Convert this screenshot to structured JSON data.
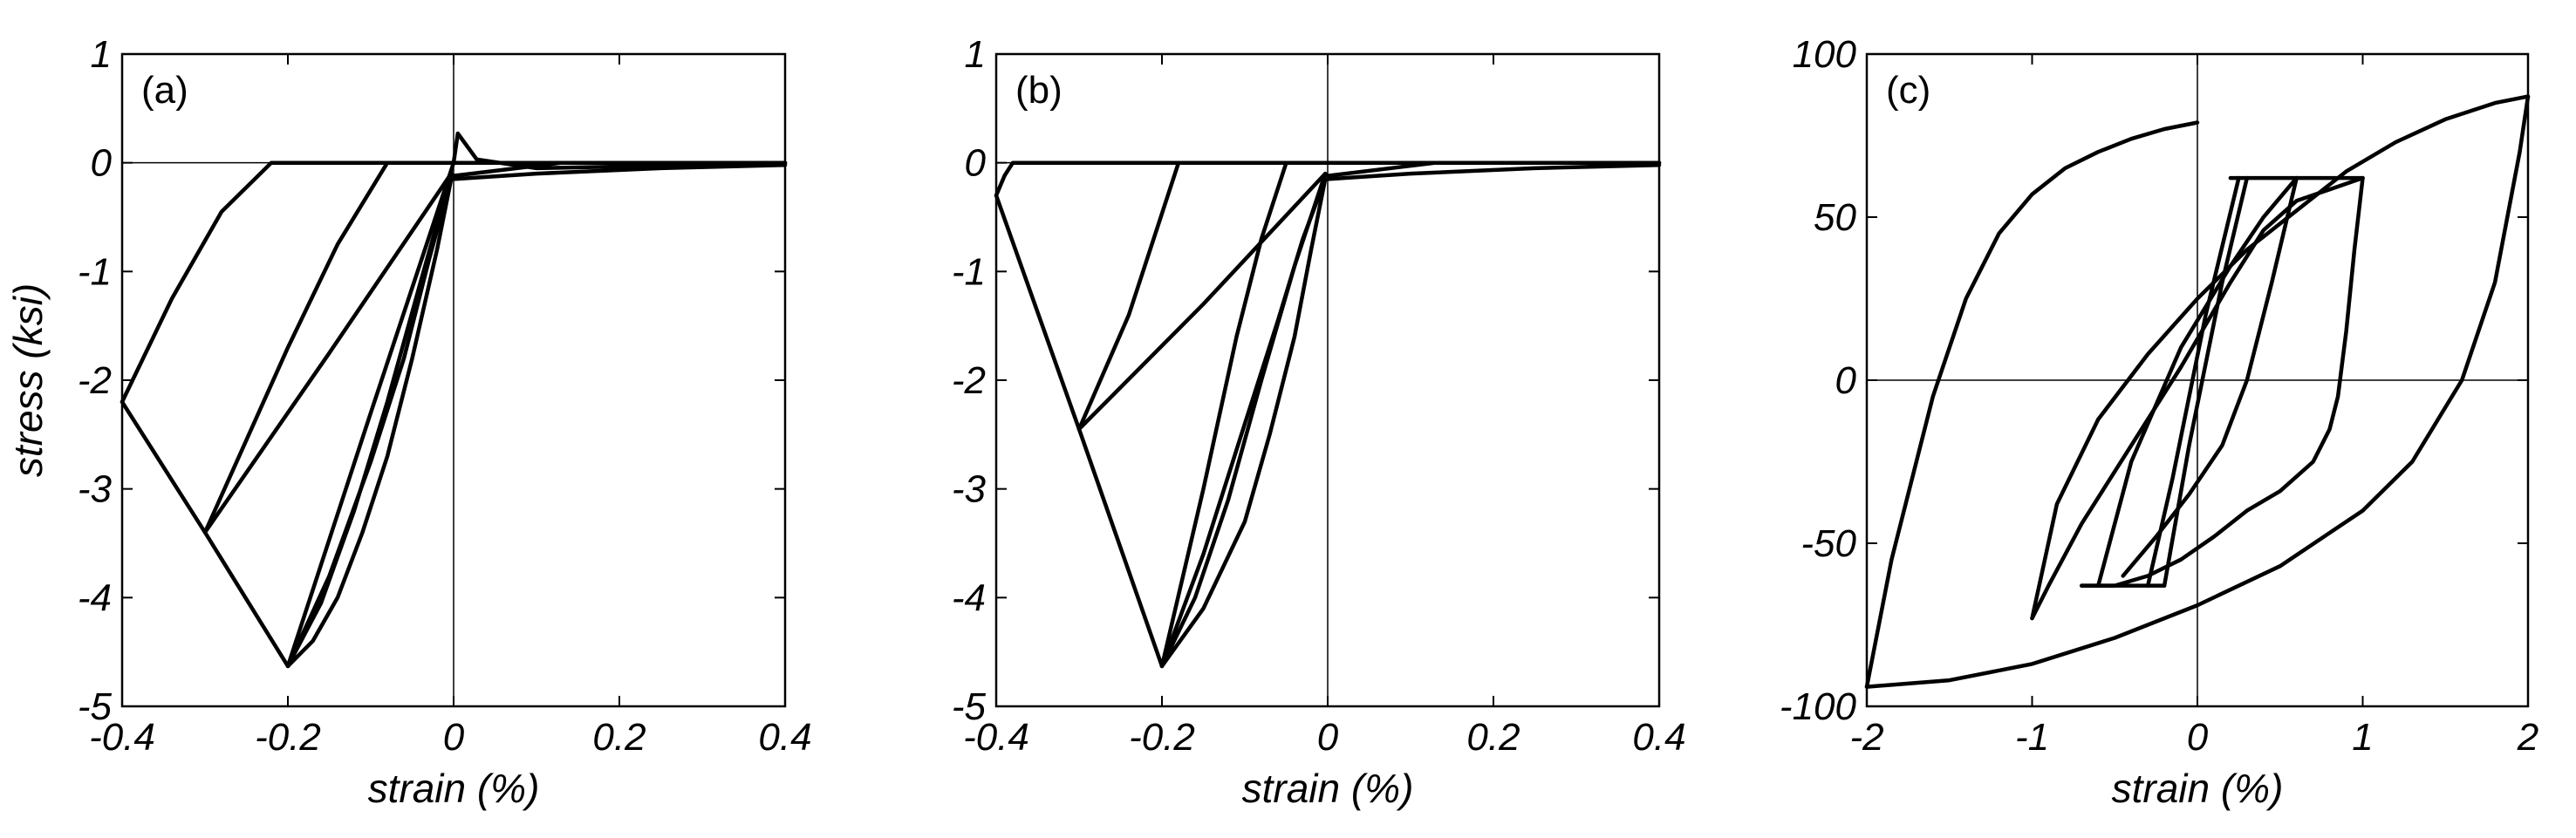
{
  "chart_data": [
    {
      "type": "line",
      "panel_label": "(a)",
      "xlabel": "strain (%)",
      "ylabel": "stress (ksi)",
      "xlim": [
        -0.4,
        0.4
      ],
      "ylim": [
        -5,
        1
      ],
      "xticks": [
        -0.4,
        -0.2,
        0,
        0.2,
        0.4
      ],
      "xtick_labels": [
        "-0.4",
        "-0.2",
        "0",
        "0.2",
        "0.4"
      ],
      "yticks": [
        -5,
        -4,
        -3,
        -2,
        -1,
        0,
        1
      ],
      "ytick_labels": [
        "-5",
        "-4",
        "-3",
        "-2",
        "-1",
        "0",
        "1"
      ],
      "zero_lines": true,
      "grid": false,
      "series": [
        {
          "x": [
            0,
            -0.1,
            -0.2,
            -0.3,
            -0.4
          ],
          "y": [
            0,
            -2.3,
            -4.63,
            -3.4,
            -2.2
          ]
        },
        {
          "x": [
            -0.4,
            -0.34,
            -0.28,
            -0.22,
            0.4
          ],
          "y": [
            -2.2,
            -1.25,
            -0.45,
            0,
            0
          ]
        },
        {
          "x": [
            -0.3,
            -0.15,
            -0.003
          ],
          "y": [
            -3.4,
            -1.75,
            -0.1
          ]
        },
        {
          "x": [
            -0.3,
            -0.2,
            -0.14,
            -0.08,
            0.4
          ],
          "y": [
            -3.4,
            -1.7,
            -0.75,
            0,
            0
          ]
        },
        {
          "x": [
            -0.2,
            -0.16,
            -0.12,
            -0.08,
            -0.04,
            -0.003
          ],
          "y": [
            -4.63,
            -4.05,
            -3.2,
            -2.2,
            -1.1,
            -0.1
          ]
        },
        {
          "x": [
            -0.2,
            -0.17,
            -0.14,
            -0.11,
            -0.08,
            -0.05,
            -0.02,
            -0.003
          ],
          "y": [
            -4.63,
            -4.4,
            -4.0,
            -3.4,
            -2.7,
            -1.8,
            -0.8,
            -0.15
          ]
        },
        {
          "x": [
            -0.2,
            -0.15,
            -0.1,
            -0.06,
            -0.03,
            -0.003
          ],
          "y": [
            -4.63,
            -3.8,
            -2.75,
            -1.8,
            -0.9,
            -0.15
          ]
        },
        {
          "x": [
            0,
            0.005,
            0.028,
            0.1,
            0.3,
            0.4
          ],
          "y": [
            0,
            0.27,
            0.03,
            -0.05,
            -0.02,
            0
          ]
        },
        {
          "x": [
            0,
            0.1,
            0.25,
            0.4
          ],
          "y": [
            -0.15,
            -0.1,
            -0.05,
            -0.02
          ]
        },
        {
          "x": [
            0,
            0.13
          ],
          "y": [
            -0.12,
            0
          ]
        }
      ]
    },
    {
      "type": "line",
      "panel_label": "(b)",
      "xlabel": "strain (%)",
      "ylabel": "",
      "xlim": [
        -0.4,
        0.4
      ],
      "ylim": [
        -5,
        1
      ],
      "xticks": [
        -0.4,
        -0.2,
        0,
        0.2,
        0.4
      ],
      "xtick_labels": [
        "-0.4",
        "-0.2",
        "0",
        "0.2",
        "0.4"
      ],
      "yticks": [
        -5,
        -4,
        -3,
        -2,
        -1,
        0,
        1
      ],
      "ytick_labels": [
        "-5",
        "-4",
        "-3",
        "-2",
        "-1",
        "0",
        "1"
      ],
      "zero_lines": true,
      "grid": false,
      "series": [
        {
          "x": [
            -0.4,
            -0.39,
            -0.38,
            0.4
          ],
          "y": [
            -0.3,
            -0.12,
            0,
            0
          ]
        },
        {
          "x": [
            -0.4,
            -0.3,
            -0.2
          ],
          "y": [
            -0.3,
            -2.45,
            -4.63
          ]
        },
        {
          "x": [
            -0.3,
            -0.15,
            -0.003
          ],
          "y": [
            -2.45,
            -1.3,
            -0.1
          ]
        },
        {
          "x": [
            -0.3,
            -0.24,
            -0.18,
            0.4
          ],
          "y": [
            -2.45,
            -1.4,
            0,
            0
          ]
        },
        {
          "x": [
            -0.2,
            -0.16,
            -0.12,
            -0.08,
            -0.04,
            -0.003
          ],
          "y": [
            -4.63,
            -4.0,
            -3.1,
            -2.0,
            -0.95,
            -0.1
          ]
        },
        {
          "x": [
            -0.2,
            -0.15,
            -0.1,
            -0.06,
            -0.03,
            -0.003
          ],
          "y": [
            -4.63,
            -3.6,
            -2.4,
            -1.45,
            -0.7,
            -0.15
          ]
        },
        {
          "x": [
            -0.2,
            -0.15,
            -0.1,
            -0.07,
            -0.04,
            -0.02,
            -0.003
          ],
          "y": [
            -4.63,
            -4.1,
            -3.3,
            -2.5,
            -1.6,
            -0.8,
            -0.15
          ]
        },
        {
          "x": [
            -0.2,
            -0.15,
            -0.11,
            -0.08,
            -0.05,
            0.4
          ],
          "y": [
            -4.63,
            -3.0,
            -1.6,
            -0.7,
            0,
            0
          ]
        },
        {
          "x": [
            0,
            0.1,
            0.25,
            0.4
          ],
          "y": [
            -0.15,
            -0.1,
            -0.05,
            -0.02
          ]
        },
        {
          "x": [
            0,
            0.13
          ],
          "y": [
            -0.12,
            0
          ]
        }
      ]
    },
    {
      "type": "line",
      "panel_label": "(c)",
      "xlabel": "strain (%)",
      "ylabel": "",
      "xlim": [
        -2,
        2
      ],
      "ylim": [
        -100,
        100
      ],
      "xticks": [
        -2,
        -1,
        0,
        1,
        2
      ],
      "xtick_labels": [
        "-2",
        "-1",
        "0",
        "1",
        "2"
      ],
      "yticks": [
        -100,
        -50,
        0,
        50,
        100
      ],
      "ytick_labels": [
        "-100",
        "-50",
        "0",
        "50",
        "100"
      ],
      "zero_lines": true,
      "grid": false,
      "series": [
        {
          "x": [
            -2,
            -1.85,
            -1.6,
            -1.4,
            -1.2,
            -1.0,
            -0.8,
            -0.6,
            -0.4,
            -0.2,
            0
          ],
          "y": [
            -94,
            -55,
            -5,
            25,
            45,
            57,
            65,
            70,
            74,
            77,
            79
          ]
        },
        {
          "x": [
            -2,
            -1.5,
            -1.0,
            -0.5,
            0,
            0.5,
            1.0,
            1.3,
            1.6,
            1.8,
            1.95,
            2
          ],
          "y": [
            -94,
            -92,
            -87,
            -79,
            -69,
            -57,
            -40,
            -25,
            0,
            30,
            70,
            87
          ]
        },
        {
          "x": [
            2,
            1.8,
            1.5,
            1.2,
            0.9,
            0.6,
            0.3,
            0.0,
            -0.3,
            -0.6,
            -0.85,
            -1.0
          ],
          "y": [
            87,
            85,
            80,
            73,
            64,
            52,
            40,
            25,
            8,
            -12,
            -38,
            -73
          ]
        },
        {
          "x": [
            -1.0,
            -0.9,
            -0.7,
            -0.4,
            -0.1,
            0.2,
            0.4,
            0.6,
            1.0
          ],
          "y": [
            -73,
            -63,
            -44,
            -20,
            4,
            30,
            46,
            55,
            62
          ]
        },
        {
          "x": [
            1.0,
            0.95,
            0.9,
            0.85,
            0.8,
            0.7,
            0.5,
            0.3,
            0.1,
            -0.1,
            -0.3,
            -0.5,
            -0.7
          ],
          "y": [
            62,
            40,
            15,
            -5,
            -15,
            -25,
            -34,
            -40,
            -48,
            -55,
            -60,
            -63,
            -63
          ]
        },
        {
          "x": [
            -0.7,
            -0.2
          ],
          "y": [
            -63,
            -63
          ]
        },
        {
          "x": [
            -0.6,
            -0.4,
            -0.1,
            0.2,
            0.4,
            0.6
          ],
          "y": [
            -63,
            -25,
            10,
            35,
            50,
            62
          ]
        },
        {
          "x": [
            0.6,
            0.45,
            0.3,
            0.15,
            -0.05,
            -0.25,
            -0.45
          ],
          "y": [
            62,
            30,
            0,
            -20,
            -35,
            -48,
            -60
          ]
        },
        {
          "x": [
            0.2,
            1.0
          ],
          "y": [
            62,
            62
          ]
        },
        {
          "x": [
            -0.2,
            -0.05,
            0.15,
            0.3
          ],
          "y": [
            -63,
            -20,
            30,
            62
          ]
        },
        {
          "x": [
            -0.3,
            -0.15,
            0.05,
            0.25
          ],
          "y": [
            -63,
            -30,
            20,
            62
          ]
        }
      ]
    }
  ]
}
